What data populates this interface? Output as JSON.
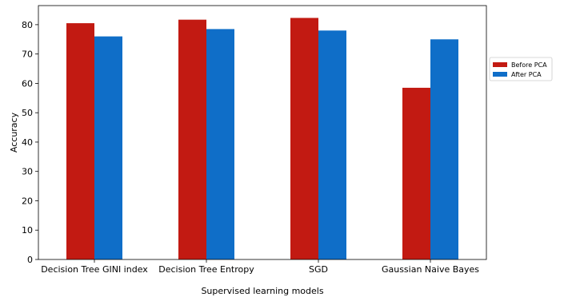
{
  "chart_data": {
    "type": "bar",
    "title": "",
    "xlabel": "Supervised learning models",
    "ylabel": "Accuracy",
    "categories": [
      "Decision Tree GINI index",
      "Decision Tree Entropy",
      "SGD",
      "Gaussian Naive Bayes"
    ],
    "series": [
      {
        "name": "Before PCA",
        "color": "#c21a12",
        "values": [
          80.5,
          81.7,
          82.3,
          58.5
        ]
      },
      {
        "name": "After PCA",
        "color": "#0f6ec8",
        "values": [
          76.0,
          78.5,
          78.0,
          75.0
        ]
      }
    ],
    "ylim": [
      0,
      86.5
    ],
    "yticks": [
      0,
      10,
      20,
      30,
      40,
      50,
      60,
      70,
      80
    ],
    "grid": false,
    "legend_position": "right"
  }
}
